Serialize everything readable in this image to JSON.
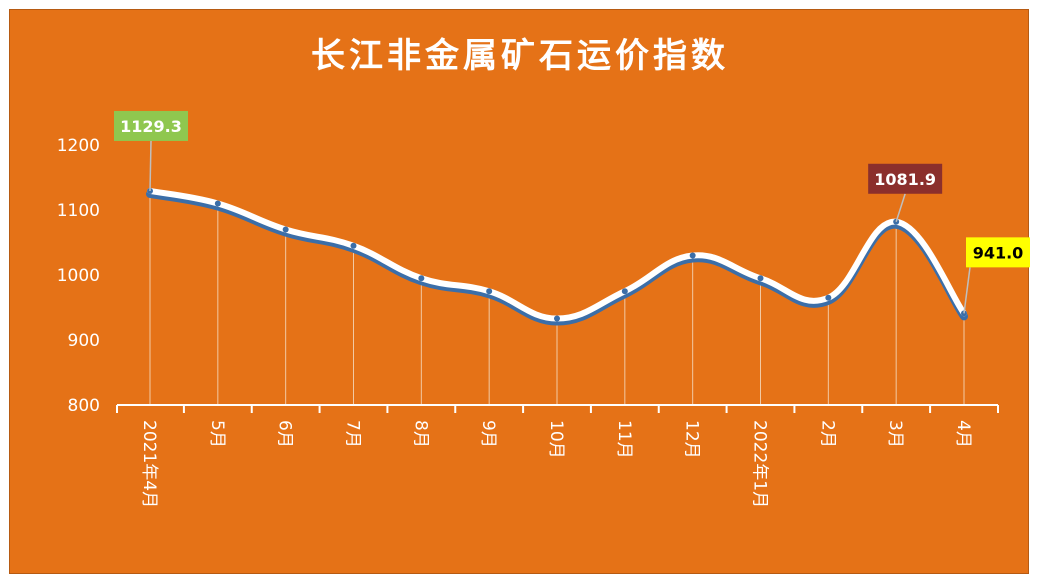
{
  "chart_data": {
    "type": "line",
    "title": "长江非金属矿石运价指数",
    "categories": [
      "2021年4月",
      "5月",
      "6月",
      "7月",
      "8月",
      "9月",
      "10月",
      "11月",
      "12月",
      "2022年1月",
      "2月",
      "3月",
      "4月"
    ],
    "series": [
      {
        "values": [
          1129.3,
          1110,
          1070,
          1045,
          995,
          975,
          933,
          975,
          1030,
          995,
          965,
          1081.9,
          941.0
        ]
      }
    ],
    "ylim": [
      800,
      1200
    ],
    "yticks": [
      800,
      900,
      1000,
      1100,
      1200
    ],
    "grid": false,
    "data_labels": [
      {
        "index": 0,
        "text": "1129.3",
        "bg": "#8fc74f",
        "color": "#ffffff"
      },
      {
        "index": 11,
        "text": "1081.9",
        "bg": "#8b2f2c",
        "color": "#ffffff"
      },
      {
        "index": 12,
        "text": "941.0",
        "bg": "#ffff00",
        "color": "#000000"
      }
    ],
    "colors": {
      "background": "#e57217",
      "line": "#ffffff",
      "line_shadow": "#3b6ea8",
      "axis": "#ffffff",
      "drop_lines": "#f2c9a3"
    }
  }
}
